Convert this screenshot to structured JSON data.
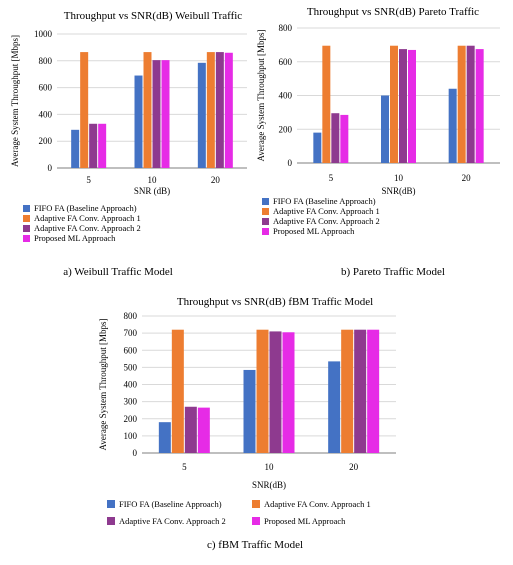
{
  "colors": {
    "fifo": "#4472C4",
    "adaptive1": "#ED7D31",
    "adaptive2": "#8E3A8F",
    "proposed": "#E62BE6",
    "grid": "#d9d9d9",
    "axis": "#7f7f7f"
  },
  "series_labels": {
    "fifo": "FIFO FA  (Baseline Approach)",
    "adaptive1": "Adaptive FA Conv. Approach 1",
    "adaptive2": "Adaptive FA Conv. Approach  2",
    "proposed": "Proposed ML Approach"
  },
  "chart_data": [
    {
      "type": "bar",
      "title": "Throughput vs SNR(dB) Weibull Traffic",
      "xlabel": "SNR (dB)",
      "ylabel": "Average System Throughput [Mbps]",
      "caption": "a) Weibull Traffic Model",
      "categories": [
        "5",
        "10",
        "20"
      ],
      "ylim": [
        0,
        1000
      ],
      "yticks": [
        "0",
        "200",
        "400",
        "600",
        "800",
        "1000"
      ],
      "series": [
        {
          "name": "FIFO FA  (Baseline Approach)",
          "values": [
            285,
            690,
            785
          ]
        },
        {
          "name": "Adaptive FA Conv. Approach 1",
          "values": [
            865,
            865,
            865
          ]
        },
        {
          "name": "Adaptive FA Conv. Approach  2",
          "values": [
            330,
            805,
            865
          ]
        },
        {
          "name": "Proposed ML Approach",
          "values": [
            330,
            805,
            860
          ]
        }
      ],
      "legend": "bottom-left"
    },
    {
      "type": "bar",
      "title": "Throughput vs SNR(dB) Pareto Traffic",
      "xlabel": "SNR(dB)",
      "ylabel": "Average System Throughput [Mbps]",
      "caption": "b) Pareto Traffic Model",
      "categories": [
        "5",
        "10",
        "20"
      ],
      "ylim": [
        0,
        800
      ],
      "yticks": [
        "0",
        "200",
        "400",
        "600",
        "800"
      ],
      "series": [
        {
          "name": "FIFO FA  (Baseline Approach)",
          "values": [
            180,
            400,
            440
          ]
        },
        {
          "name": "Adaptive FA Conv. Approach 1",
          "values": [
            695,
            695,
            695
          ]
        },
        {
          "name": "Adaptive FA Conv. Approach  2",
          "values": [
            295,
            675,
            695
          ]
        },
        {
          "name": "Proposed ML Approach",
          "values": [
            285,
            670,
            675
          ]
        }
      ],
      "legend": "bottom-left"
    },
    {
      "type": "bar",
      "title": "Throughput vs SNR(dB) fBM Traffic Model",
      "xlabel": "SNR(dB)",
      "ylabel": "Average System Throughput [Mbps]",
      "caption": "c) fBM Traffic Model",
      "categories": [
        "5",
        "10",
        "20"
      ],
      "ylim": [
        0,
        800
      ],
      "yticks": [
        "0",
        "100",
        "200",
        "300",
        "400",
        "500",
        "600",
        "700",
        "800"
      ],
      "series": [
        {
          "name": "FIFO FA  (Baseline Approach)",
          "values": [
            180,
            485,
            535
          ]
        },
        {
          "name": "Adaptive FA Conv. Approach 1",
          "values": [
            720,
            720,
            720
          ]
        },
        {
          "name": "Adaptive FA Conv. Approach  2",
          "values": [
            270,
            710,
            720
          ]
        },
        {
          "name": "Proposed ML Approach",
          "values": [
            265,
            705,
            720
          ]
        }
      ],
      "legend": "bottom"
    }
  ]
}
